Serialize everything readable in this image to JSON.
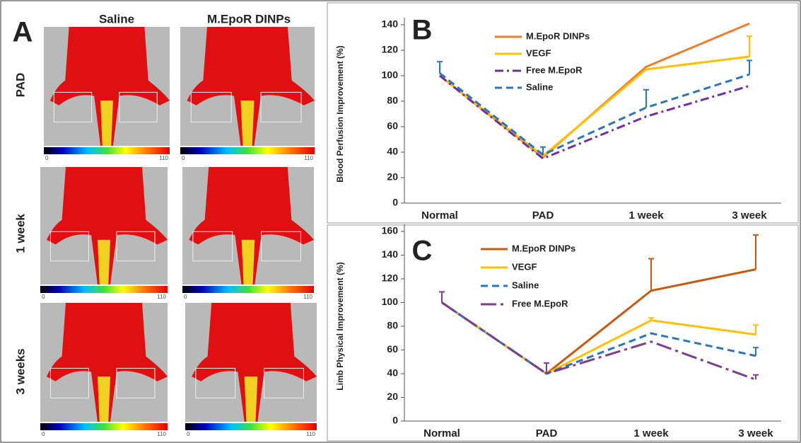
{
  "panel_a": {
    "label": "A",
    "columns": [
      "Saline",
      "M.EpoR DINPs"
    ],
    "rows": [
      "PAD",
      "1 week",
      "3 weeks"
    ],
    "colorbar_min": "0",
    "colorbar_max": "110"
  },
  "chart_data": [
    {
      "type": "line",
      "panel": "B",
      "ylabel": "Blood Perfusion Improvement (%)",
      "categories": [
        "Normal",
        "PAD",
        "1 week",
        "3 week"
      ],
      "ylim": [
        0,
        140
      ],
      "yticks": [
        0,
        20,
        40,
        60,
        80,
        100,
        120,
        140
      ],
      "series": [
        {
          "name": "M.EpoR DINPs",
          "color": "#ed7d31",
          "dash": "solid",
          "values": [
            100,
            36,
            107,
            141
          ],
          "errors": [
            null,
            null,
            null,
            null
          ]
        },
        {
          "name": "VEGF",
          "color": "#ffc000",
          "dash": "solid",
          "values": [
            100,
            37,
            105,
            115
          ],
          "errors": [
            null,
            null,
            null,
            16
          ]
        },
        {
          "name": "Free M.EpoR",
          "color": "#7030a0",
          "dash": "dashdot",
          "values": [
            100,
            35,
            68,
            92
          ],
          "errors": [
            null,
            null,
            null,
            null
          ]
        },
        {
          "name": "Saline",
          "color": "#2e75b6",
          "dash": "dashed",
          "values": [
            102,
            38,
            75,
            101
          ],
          "errors": [
            9,
            6,
            14,
            11
          ]
        }
      ]
    },
    {
      "type": "line",
      "panel": "C",
      "ylabel": "Limb Physical Improvement (%)",
      "categories": [
        "Normal",
        "PAD",
        "1 week",
        "3 week"
      ],
      "ylim": [
        0,
        160
      ],
      "yticks": [
        0,
        20,
        40,
        60,
        80,
        100,
        120,
        140,
        160
      ],
      "series": [
        {
          "name": "M.EpoR DINPs",
          "color": "#c55a11",
          "dash": "solid",
          "values": [
            100,
            40,
            110,
            128
          ],
          "errors": [
            null,
            null,
            27,
            29
          ]
        },
        {
          "name": "VEGF",
          "color": "#ffc000",
          "dash": "solid",
          "values": [
            100,
            40,
            85,
            73
          ],
          "errors": [
            null,
            null,
            2,
            8
          ]
        },
        {
          "name": "Saline",
          "color": "#2e75b6",
          "dash": "dashed",
          "values": [
            100,
            40,
            74,
            55
          ],
          "errors": [
            null,
            null,
            null,
            7
          ]
        },
        {
          "name": "Free M.EpoR",
          "color": "#7b3f8c",
          "dash": "longdashdot",
          "values": [
            100,
            40,
            67,
            35
          ],
          "errors": [
            9,
            9,
            null,
            4
          ]
        }
      ]
    }
  ]
}
